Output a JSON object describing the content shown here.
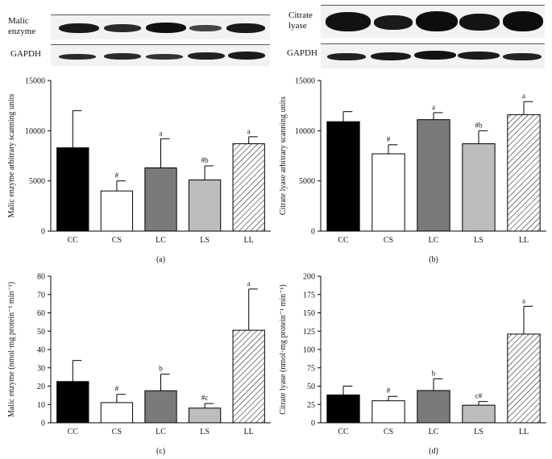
{
  "blots": {
    "a": {
      "protein_label": "Malic\nenzyme",
      "control_label": "GAPDH"
    },
    "b": {
      "protein_label": "Citrate\nlyase",
      "control_label": "GAPDH"
    }
  },
  "colors": {
    "CC": "#000000",
    "CS": "#ffffff",
    "LC": "#7a7a7a",
    "LS": "#bdbdbd",
    "LL": "hatch"
  },
  "chart_data": [
    {
      "type": "bar",
      "panel_label": "(a)",
      "categories": [
        "CC",
        "CS",
        "LC",
        "LS",
        "LL"
      ],
      "values": [
        8300,
        4000,
        6300,
        5100,
        8700
      ],
      "errors": [
        3700,
        1000,
        2900,
        1400,
        700
      ],
      "annotations": [
        "",
        "#",
        "a",
        "#b",
        "a"
      ],
      "ylabel": "Malic enzyme arbitrary scanning units",
      "ylim": [
        0,
        15000
      ],
      "yticks": [
        0,
        5000,
        10000,
        15000
      ]
    },
    {
      "type": "bar",
      "panel_label": "(b)",
      "categories": [
        "CC",
        "CS",
        "LC",
        "LS",
        "LL"
      ],
      "values": [
        10900,
        7700,
        11100,
        8700,
        11600
      ],
      "errors": [
        1000,
        900,
        700,
        1300,
        1300
      ],
      "annotations": [
        "",
        "#",
        "a",
        "#b",
        "a"
      ],
      "ylabel": "Citrate lyase arbitrary scanning units",
      "ylim": [
        0,
        15000
      ],
      "yticks": [
        0,
        5000,
        10000,
        15000
      ]
    },
    {
      "type": "bar",
      "panel_label": "(c)",
      "categories": [
        "CC",
        "CS",
        "LC",
        "LS",
        "LL"
      ],
      "values": [
        22.5,
        11,
        17.5,
        8,
        50.5
      ],
      "errors": [
        11.5,
        4.5,
        9,
        2.5,
        22.5
      ],
      "annotations": [
        "",
        "#",
        "b",
        "#c",
        "a"
      ],
      "ylabel": "Malic enzyme (nmol·mg protein⁻¹ min⁻¹)",
      "ylim": [
        0,
        80
      ],
      "yticks": [
        0,
        10,
        20,
        30,
        40,
        50,
        60,
        70,
        80
      ]
    },
    {
      "type": "bar",
      "panel_label": "(d)",
      "categories": [
        "CC",
        "CS",
        "LC",
        "LS",
        "LL"
      ],
      "values": [
        38,
        30,
        44,
        24,
        121
      ],
      "errors": [
        12,
        6,
        16,
        5,
        38
      ],
      "annotations": [
        "",
        "#",
        "b",
        "c#",
        "a"
      ],
      "ylabel": "Citrate lyase (nmol·mg protein⁻¹ min⁻¹)",
      "ylim": [
        0,
        200
      ],
      "yticks": [
        0,
        25,
        50,
        75,
        100,
        125,
        150,
        175,
        200
      ]
    }
  ]
}
